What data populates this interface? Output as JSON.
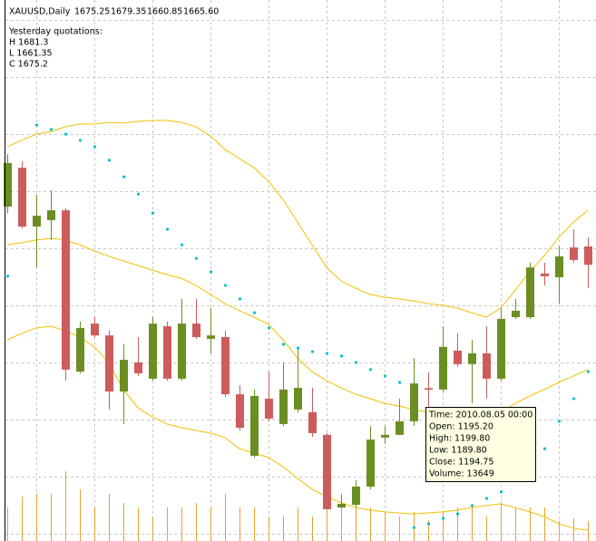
{
  "chart_data": {
    "type": "candlestick",
    "title": "XAUUSD,Daily",
    "header_quotes": [
      "1675.25",
      "1679.35",
      "1660.85",
      "1665.60"
    ],
    "info_lines": [
      "Yesterday quotations:",
      "H 1681.3",
      "L 1661.35",
      "C 1675.2"
    ],
    "tooltip_lines": [
      "Time: 2010.08.05 00:00",
      "Open: 1195.20",
      "High: 1199.80",
      "Low: 1189.80",
      "Close: 1194.75",
      "Volume: 13649"
    ],
    "ylim": [
      1150,
      1310
    ],
    "vlim": [
      0,
      60000
    ],
    "grid": true,
    "up_color": "#6b8e23",
    "down_color": "#cd5c5c",
    "open": [
      1248.9,
      1260.4,
      1243,
      1244.9,
      1247.8,
      1200.1,
      1214.3,
      1210.8,
      1194.2,
      1202.8,
      1198,
      1213.5,
      1198,
      1214.3,
      1209.8,
      1210.3,
      1193.4,
      1175.2,
      1192.1,
      1184.6,
      1188.9,
      1188.1,
      1181.4,
      1159.9,
      1160.7,
      1166.1,
      1180.6,
      1181.4,
      1185.4,
      1195.2,
      1194.8,
      1206.3,
      1202.3,
      1205.5,
      1198,
      1216.2,
      1216.2,
      1229.1,
      1228,
      1236.8,
      1237.1
    ],
    "high": [
      1264.4,
      1262.3,
      1252.4,
      1253.7,
      1248.4,
      1214.9,
      1216.2,
      1212.2,
      1208.2,
      1210.3,
      1216.2,
      1214.9,
      1221.6,
      1221.6,
      1218.9,
      1212.2,
      1196.1,
      1194.8,
      1200.1,
      1202.8,
      1206.8,
      1195.3,
      1181.9,
      1163.9,
      1168,
      1184,
      1184,
      1192.1,
      1204.1,
      1199.8,
      1213.5,
      1211.4,
      1209.5,
      1213.5,
      1218.9,
      1221.6,
      1232.3,
      1232.3,
      1237.1,
      1242.2,
      1239.8
    ],
    "low": [
      1247,
      1242.5,
      1230.9,
      1239,
      1197.4,
      1199.6,
      1210.3,
      1188.9,
      1184.6,
      1198.8,
      1197.4,
      1197.4,
      1197.4,
      1209.8,
      1205.5,
      1192.6,
      1182.7,
      1174.7,
      1185.4,
      1184,
      1188.1,
      1180.8,
      1159.4,
      1159.9,
      1159.9,
      1165.3,
      1178.7,
      1181.4,
      1184,
      1189.8,
      1194.2,
      1201.5,
      1190.7,
      1192.1,
      1197.4,
      1215.7,
      1215.7,
      1225.6,
      1220.2,
      1232.3,
      1224.8
    ],
    "close": [
      1261.8,
      1243,
      1246.2,
      1247.8,
      1200.7,
      1213,
      1210.8,
      1194.2,
      1203.6,
      1199.6,
      1214.3,
      1198,
      1214.3,
      1210.3,
      1210.8,
      1193.4,
      1183.5,
      1192.9,
      1186.2,
      1194.8,
      1195.3,
      1181.9,
      1159.4,
      1161,
      1166.1,
      1180,
      1181.4,
      1185.4,
      1196.6,
      1194.75,
      1207.4,
      1202.3,
      1205.5,
      1198,
      1215.7,
      1218.1,
      1230.9,
      1228.3,
      1234.2,
      1233.1,
      1231.7
    ],
    "volume": {
      "color": "#e8a030",
      "values": [
        22200,
        29400,
        31200,
        31200,
        46200,
        34200,
        22200,
        31200,
        25200,
        22200,
        16200,
        22200,
        22200,
        25200,
        22200,
        31200,
        22200,
        22200,
        16200,
        16200,
        22200,
        16200,
        22200,
        22200,
        25200,
        22200,
        19200,
        16200,
        19200,
        13649,
        19200,
        22200,
        22200,
        16200,
        25200,
        22200,
        22200,
        22200,
        13200,
        15000,
        13200
      ]
    },
    "sar": {
      "color": "#00c0c8",
      "values": [
        1228.3,
        null,
        1273,
        1271.7,
        1270.3,
        1268.5,
        1266.6,
        1262.6,
        1257.7,
        1252.6,
        1247,
        1242.2,
        1237.6,
        1233.6,
        1229.6,
        1225.6,
        1221.6,
        1217.5,
        1213,
        1208.2,
        1207.1,
        1206,
        1205.5,
        1204.7,
        1202.8,
        1200.7,
        1198.8,
        1196.9,
        1154,
        1155.1,
        1156.7,
        1158,
        1160.5,
        1162.6,
        1164.5,
        1168,
        1172,
        1177.3,
        1185.4,
        1192.1,
        1200.1
      ]
    },
    "bands": [
      {
        "color": "#f0c000",
        "values": [
          1266.6,
          1268.5,
          1270.3,
          1271.1,
          1272.5,
          1273.3,
          1273.3,
          1273.8,
          1273.6,
          1274.1,
          1274.4,
          1274.4,
          1273.8,
          1272.5,
          1269.8,
          1265.8,
          1263.1,
          1260.4,
          1256.4,
          1251,
          1244.3,
          1237.6,
          1230.9,
          1226.9,
          1224.8,
          1222.9,
          1222.1,
          1221.6,
          1221,
          1220.2,
          1219.7,
          1218.9,
          1217.5,
          1216.2,
          1218.9,
          1224.2,
          1229.6,
          1234.4,
          1239.8,
          1244.3,
          1247.8
        ]
      },
      {
        "color": "#f0c000",
        "values": [
          1237.6,
          1238.2,
          1239,
          1239.5,
          1239,
          1237.6,
          1235.8,
          1234.2,
          1232.8,
          1231.5,
          1230.1,
          1228.8,
          1227.7,
          1225.6,
          1222.9,
          1220.2,
          1218.1,
          1216.2,
          1214.1,
          1209.5,
          1204.1,
          1200.1,
          1197.4,
          1195.3,
          1193.4,
          1192.1,
          1190.7,
          1189.9,
          1188.9,
          1188.1,
          1187.5,
          1187.3,
          1186.7,
          1186.7,
          1188.1,
          1190.7,
          1192.9,
          1194.8,
          1196.9,
          1198.8,
          1200.7
        ]
      },
      {
        "color": "#f0c000",
        "values": [
          1209.5,
          1211.4,
          1213,
          1213.5,
          1212.2,
          1210.3,
          1207.4,
          1202.8,
          1194.8,
          1189.4,
          1186.7,
          1184.6,
          1183.5,
          1182.7,
          1181.9,
          1180.6,
          1177.3,
          1176,
          1174.7,
          1172,
          1168.5,
          1165.3,
          1163.1,
          1161.3,
          1159.9,
          1159.1,
          1158.6,
          1158.3,
          1158,
          1158.3,
          1158.6,
          1159.1,
          1159.9,
          1160.5,
          1161,
          1159.9,
          1158.6,
          1157.2,
          1155.1,
          1153.8,
          1153.2
        ]
      }
    ]
  }
}
